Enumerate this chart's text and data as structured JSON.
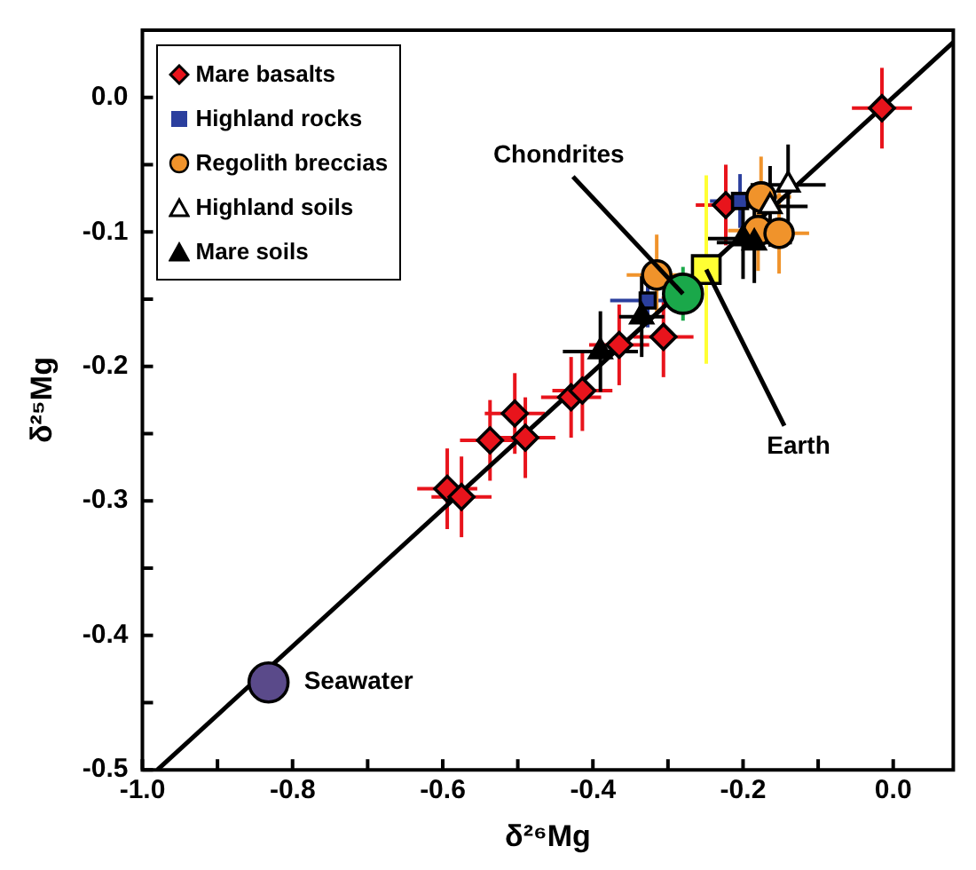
{
  "chart_data": {
    "type": "scatter",
    "xlabel": "δ²⁶Mg",
    "ylabel": "δ²⁵Mg",
    "xlim": [
      -1.0,
      0.08
    ],
    "ylim": [
      -0.5,
      0.05
    ],
    "xticks": [
      {
        "value": -1.0,
        "label": "-1.0"
      },
      {
        "value": -0.9,
        "label": null
      },
      {
        "value": -0.8,
        "label": "-0.8"
      },
      {
        "value": -0.7,
        "label": null
      },
      {
        "value": -0.6,
        "label": "-0.6"
      },
      {
        "value": -0.5,
        "label": null
      },
      {
        "value": -0.4,
        "label": "-0.4"
      },
      {
        "value": -0.3,
        "label": null
      },
      {
        "value": -0.2,
        "label": "-0.2"
      },
      {
        "value": -0.1,
        "label": null
      },
      {
        "value": 0.0,
        "label": "0.0"
      }
    ],
    "yticks": [
      {
        "value": -0.5,
        "label": "-0.5"
      },
      {
        "value": -0.45,
        "label": null
      },
      {
        "value": -0.4,
        "label": "-0.4"
      },
      {
        "value": -0.35,
        "label": null
      },
      {
        "value": -0.3,
        "label": "-0.3"
      },
      {
        "value": -0.25,
        "label": null
      },
      {
        "value": -0.2,
        "label": "-0.2"
      },
      {
        "value": -0.15,
        "label": null
      },
      {
        "value": -0.1,
        "label": "-0.1"
      },
      {
        "value": -0.05,
        "label": null
      },
      {
        "value": 0.0,
        "label": "0.0"
      },
      {
        "value": 0.05,
        "label": null
      }
    ],
    "grid": false,
    "legend": "top left",
    "annotations": [
      {
        "text": "Chondrites",
        "x": -0.28,
        "y": -0.146
      },
      {
        "text": "Earth",
        "x": -0.249,
        "y": -0.128
      },
      {
        "text": "Seawater",
        "x": -0.832,
        "y": -0.435
      }
    ],
    "series": [
      {
        "type": "line",
        "color": "#000000",
        "marker": "none",
        "x": [
          -0.98,
          0.08
        ],
        "values": [
          -0.5,
          0.041
        ]
      },
      {
        "name": "Mare basalts",
        "color": "#e8141c",
        "marker": "diamond",
        "x": [
          -0.594,
          -0.575,
          -0.537,
          -0.504,
          -0.49,
          -0.429,
          -0.414,
          -0.365,
          -0.306,
          -0.223,
          -0.015
        ],
        "values": [
          -0.291,
          -0.297,
          -0.255,
          -0.235,
          -0.253,
          -0.223,
          -0.218,
          -0.184,
          -0.178,
          -0.08,
          -0.008
        ],
        "errors": [
          0.03,
          0.03,
          0.03,
          0.03,
          0.03,
          0.03,
          0.03,
          0.03,
          0.03,
          0.03,
          0.03
        ],
        "xerrors": [
          0.04,
          0.04,
          0.04,
          0.04,
          0.04,
          0.04,
          0.04,
          0.04,
          0.04,
          0.04,
          0.04
        ]
      },
      {
        "name": "Highland rocks",
        "color": "#2b3f9e",
        "marker": "square",
        "x": [
          -0.327,
          -0.204
        ],
        "values": [
          -0.151,
          -0.077
        ],
        "errors": [
          0.02,
          0.02
        ],
        "xerrors": [
          0.05,
          0.04
        ]
      },
      {
        "name": "Regolith breccias",
        "color": "#f0932b",
        "marker": "circle",
        "x": [
          -0.315,
          -0.18,
          -0.176,
          -0.152
        ],
        "values": [
          -0.132,
          -0.099,
          -0.074,
          -0.101
        ],
        "errors": [
          0.03,
          0.03,
          0.03,
          0.03
        ],
        "xerrors": [
          0.04,
          0.04,
          0.04,
          0.04
        ]
      },
      {
        "name": "Highland soils",
        "color": "#ffffff",
        "marker": "triangle",
        "x": [
          -0.164,
          -0.14
        ],
        "values": [
          -0.081,
          -0.065
        ],
        "errors": [
          0.03,
          0.03
        ],
        "xerrors": [
          0.05,
          0.05
        ]
      },
      {
        "name": "Mare soils",
        "color": "#000000",
        "marker": "triangle",
        "x": [
          -0.39,
          -0.335,
          -0.2,
          -0.185
        ],
        "values": [
          -0.189,
          -0.163,
          -0.105,
          -0.108
        ],
        "errors": [
          0.03,
          0.03,
          0.03,
          0.03
        ],
        "xerrors": [
          0.05,
          0.03,
          0.05,
          0.05
        ]
      },
      {
        "color": "#ffff33",
        "marker": "square",
        "x": [
          -0.249
        ],
        "values": [
          -0.128
        ],
        "errors": [
          0.07
        ]
      },
      {
        "color": "#1aa84a",
        "marker": "circle",
        "x": [
          -0.28
        ],
        "values": [
          -0.146
        ],
        "errors": [
          0.02
        ]
      },
      {
        "color": "#5a4a8a",
        "marker": "circle",
        "x": [
          -0.832
        ],
        "values": [
          -0.435
        ],
        "errors": [
          0.015
        ]
      }
    ]
  }
}
